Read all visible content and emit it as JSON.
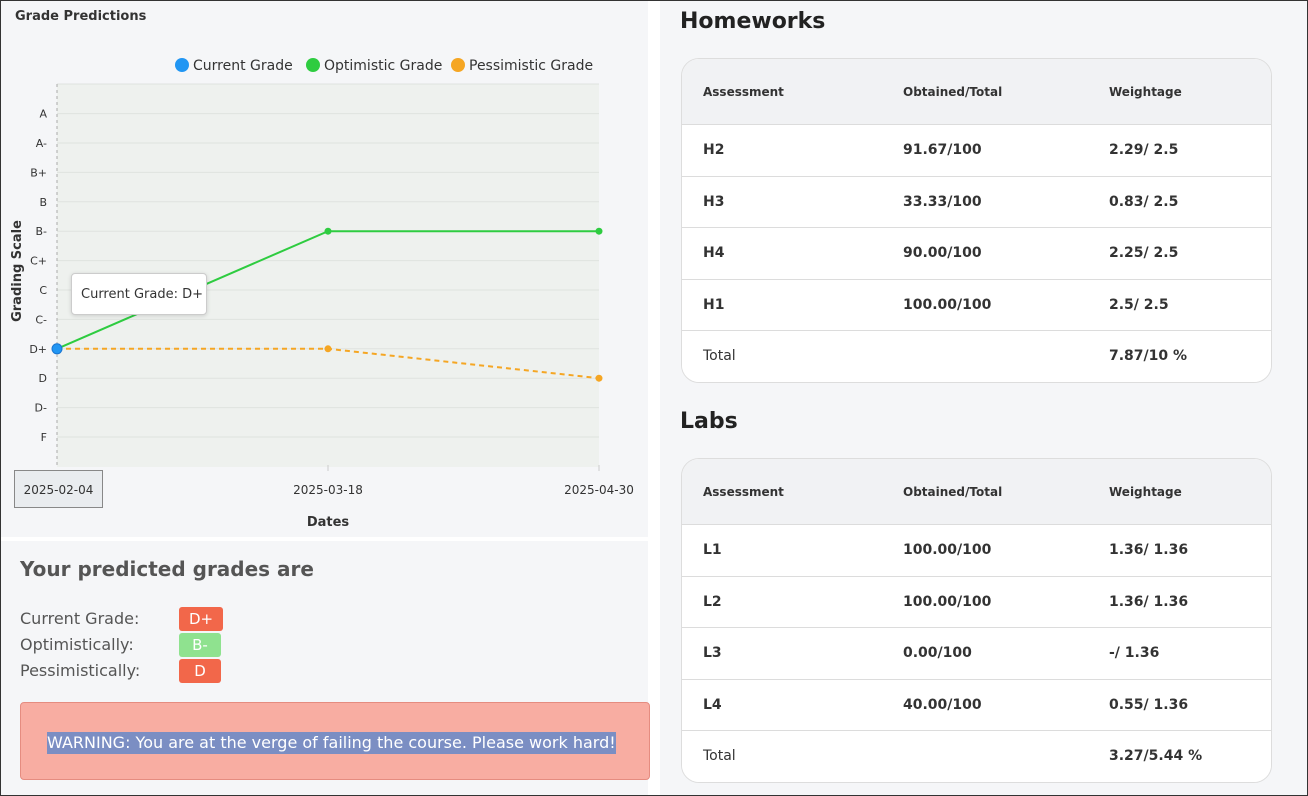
{
  "chart": {
    "title": "Grade Predictions",
    "tooltip": "Current Grade: D+",
    "highlighted_date": "2025-02-04"
  },
  "chart_data": {
    "type": "line",
    "title": "Grade Predictions",
    "xlabel": "Dates",
    "ylabel": "Grading Scale",
    "x": [
      "2025-02-04",
      "2025-03-18",
      "2025-04-30"
    ],
    "y_categories": [
      "F",
      "D-",
      "D",
      "D+",
      "C-",
      "C",
      "C+",
      "B-",
      "B",
      "B+",
      "A-",
      "A"
    ],
    "legend_position": "top-right",
    "series": [
      {
        "name": "Current Grade",
        "color": "#2196f3",
        "values": [
          "D+",
          null,
          null
        ]
      },
      {
        "name": "Optimistic Grade",
        "color": "#2ecc40",
        "values": [
          "D+",
          "B-",
          "B-"
        ],
        "style": "solid"
      },
      {
        "name": "Pessimistic Grade",
        "color": "#f5a623",
        "values": [
          "D+",
          "D+",
          "D"
        ],
        "style": "dashed"
      }
    ]
  },
  "predictions": {
    "title": "Your predicted grades are",
    "rows": [
      {
        "label": "Current Grade:",
        "grade": "D+",
        "color": "#f2674a"
      },
      {
        "label": "Optimistically:",
        "grade": "B-",
        "color": "#8fe28f"
      },
      {
        "label": "Pessimistically:",
        "grade": "D",
        "color": "#f2674a"
      }
    ],
    "warning": "WARNING: You are at the verge of failing the course. Please work hard!"
  },
  "homeworks": {
    "title": "Homeworks",
    "headers": [
      "Assessment",
      "Obtained/Total",
      "Weightage"
    ],
    "rows": [
      [
        "H2",
        "91.67/100",
        "2.29/ 2.5"
      ],
      [
        "H3",
        "33.33/100",
        "0.83/ 2.5"
      ],
      [
        "H4",
        "90.00/100",
        "2.25/ 2.5"
      ],
      [
        "H1",
        "100.00/100",
        "2.5/ 2.5"
      ]
    ],
    "total_label": "Total",
    "total_value": "7.87/10 %"
  },
  "labs": {
    "title": "Labs",
    "headers": [
      "Assessment",
      "Obtained/Total",
      "Weightage"
    ],
    "rows": [
      [
        "L1",
        "100.00/100",
        "1.36/ 1.36"
      ],
      [
        "L2",
        "100.00/100",
        "1.36/ 1.36"
      ],
      [
        "L3",
        "0.00/100",
        "-/ 1.36"
      ],
      [
        "L4",
        "40.00/100",
        "0.55/ 1.36"
      ]
    ],
    "total_label": "Total",
    "total_value": "3.27/5.44 %"
  }
}
